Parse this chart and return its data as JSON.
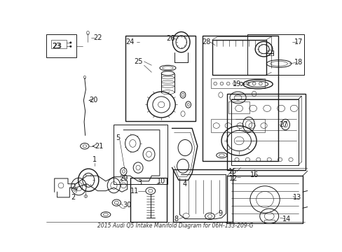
{
  "title": "2015 Audi Q5 Intake Manifold Diagram for 06H-133-209-G",
  "bg_color": "#ffffff",
  "line_color": "#1a1a1a",
  "fig_width": 4.89,
  "fig_height": 3.6,
  "dpi": 100
}
